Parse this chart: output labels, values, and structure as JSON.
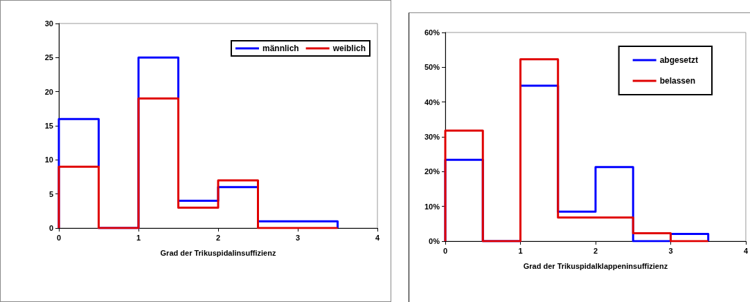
{
  "chart_data": [
    {
      "type": "histogram",
      "xlabel": "Grad der Trikuspidalinsuffizienz",
      "bins": [
        0,
        0.5,
        1,
        1.5,
        2,
        2.5,
        3,
        3.5
      ],
      "xlim": [
        0,
        4
      ],
      "xticks": [
        0,
        1,
        2,
        3,
        4
      ],
      "ylim": [
        0,
        30
      ],
      "yticks": [
        0,
        5,
        10,
        15,
        20,
        25,
        30
      ],
      "legend": "top right",
      "grid": false,
      "series": [
        {
          "name": "männlich",
          "color": "#0000ff",
          "values": [
            16,
            0,
            25,
            4,
            6,
            1,
            1
          ]
        },
        {
          "name": "weiblich",
          "color": "#e00000",
          "values": [
            9,
            0,
            19,
            3,
            7,
            0,
            0
          ]
        }
      ]
    },
    {
      "type": "histogram",
      "xlabel": "Grad der Trikuspidalklappeninsuffizienz",
      "bins": [
        0,
        0.5,
        1,
        1.5,
        2,
        2.5,
        3,
        3.5
      ],
      "xlim": [
        0,
        4
      ],
      "xticks": [
        0,
        1,
        2,
        3,
        4
      ],
      "ylim": [
        0,
        60
      ],
      "yticks": [
        {
          "value": 0,
          "label": "0%"
        },
        {
          "value": 10,
          "label": "10%"
        },
        {
          "value": 20,
          "label": "20%"
        },
        {
          "value": 30,
          "label": "30%"
        },
        {
          "value": 40,
          "label": "40%"
        },
        {
          "value": 50,
          "label": "50%"
        },
        {
          "value": 60,
          "label": "60%"
        }
      ],
      "legend": "top right",
      "grid": false,
      "series": [
        {
          "name": "abgesetzt",
          "color": "#0000ff",
          "values": [
            23.4,
            0,
            44.7,
            8.5,
            21.3,
            0,
            2.1
          ]
        },
        {
          "name": "belassen",
          "color": "#e00000",
          "values": [
            31.8,
            0,
            52.3,
            6.8,
            6.8,
            2.3,
            0
          ]
        }
      ]
    }
  ]
}
